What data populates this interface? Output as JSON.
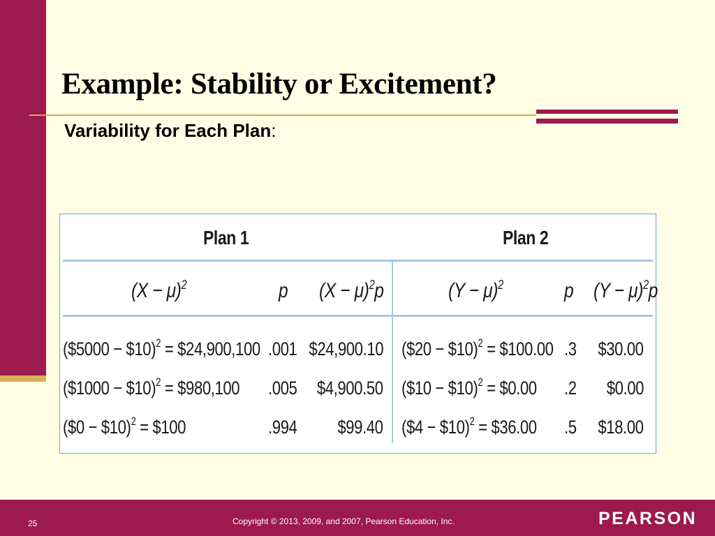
{
  "slide": {
    "title": "Example: Stability or Excitement?",
    "subtitle": "Variability for Each Plan",
    "subtitle_suffix": ":",
    "page_number": "25",
    "copyright": "Copyright © 2013, 2009, and 2007, Pearson Education, Inc.",
    "logo": "PEARSON"
  },
  "colors": {
    "accent": "#9c1a4d",
    "gold_rule": "#d4a85a",
    "background": "#ffffe5",
    "table_border": "#6fa3d8"
  },
  "table": {
    "plan1": {
      "heading": "Plan 1",
      "col_sq": "(X − μ)",
      "col_p": "p",
      "col_product": "(X − μ)",
      "col_product_suffix": "p",
      "rows": [
        {
          "lhs": "($5000 − $10)",
          "rhs": " = $24,900,100",
          "p": ".001",
          "product": "$24,900.10"
        },
        {
          "lhs": "($1000 − $10)",
          "rhs": " = $980,100",
          "p": ".005",
          "product": "$4,900.50"
        },
        {
          "lhs": "($0 − $10)",
          "rhs": " = $100",
          "p": ".994",
          "product": "$99.40"
        }
      ]
    },
    "plan2": {
      "heading": "Plan 2",
      "col_sq": "(Y − μ)",
      "col_p": "p",
      "col_product": "(Y − μ)",
      "col_product_suffix": "p",
      "rows": [
        {
          "lhs": "($20 − $10)",
          "rhs": " = $100.00",
          "p": ".3",
          "product": "$30.00"
        },
        {
          "lhs": "($10 − $10)",
          "rhs": " = $0.00",
          "p": ".2",
          "product": "$0.00"
        },
        {
          "lhs": "($4 − $10)",
          "rhs": " = $36.00",
          "p": ".5",
          "product": "$18.00"
        }
      ]
    }
  }
}
